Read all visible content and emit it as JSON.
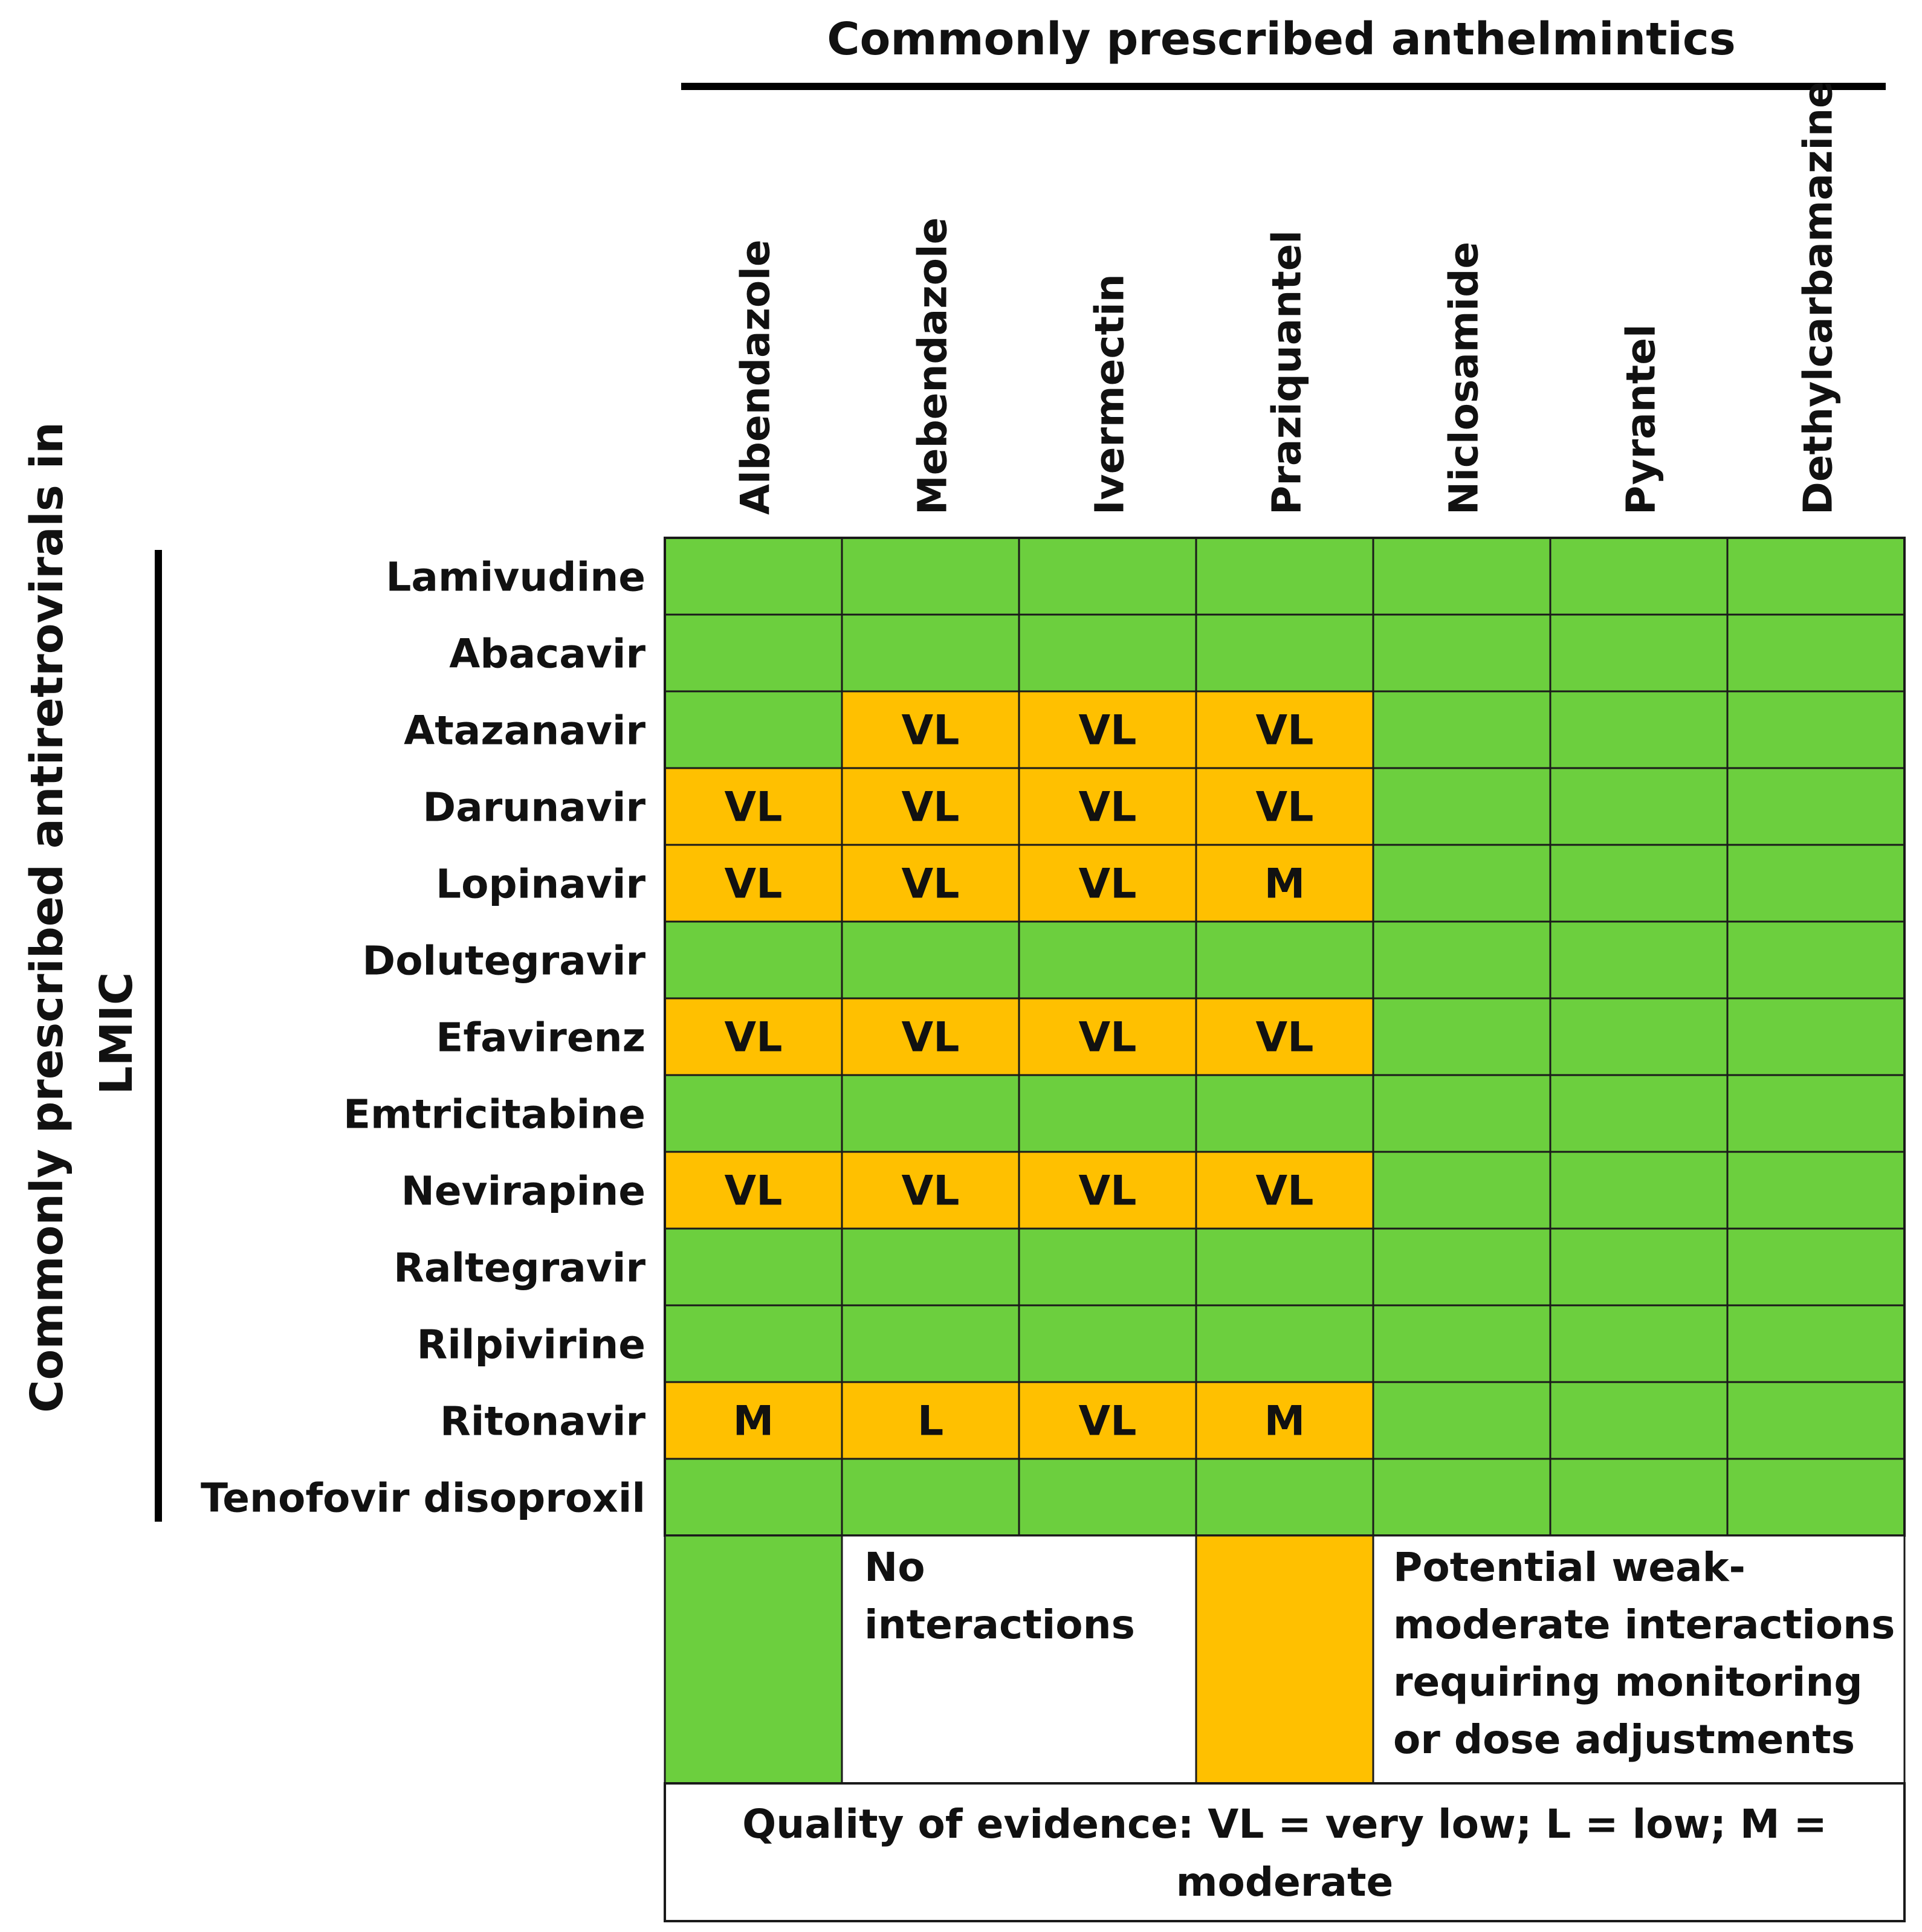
{
  "colors": {
    "green": "#6ccf3e",
    "orange": "#ffc000",
    "grid": "#1a1a1a",
    "text": "#111111"
  },
  "chart_data": {
    "type": "table",
    "title": "Commonly prescribed anthelmintics",
    "row_axis_label": [
      "Commonly prescribed antiretrovirals in",
      "LMIC"
    ],
    "columns": [
      "Albendazole",
      "Mebendazole",
      "Ivermectin",
      "Praziquantel",
      "Niclosamide",
      "Pyrantel",
      "Dethylcarbamazine"
    ],
    "rows": [
      {
        "name": "Lamivudine",
        "cells": [
          [
            "G",
            ""
          ],
          [
            "G",
            ""
          ],
          [
            "G",
            ""
          ],
          [
            "G",
            ""
          ],
          [
            "G",
            ""
          ],
          [
            "G",
            ""
          ],
          [
            "G",
            ""
          ]
        ]
      },
      {
        "name": "Abacavir",
        "cells": [
          [
            "G",
            ""
          ],
          [
            "G",
            ""
          ],
          [
            "G",
            ""
          ],
          [
            "G",
            ""
          ],
          [
            "G",
            ""
          ],
          [
            "G",
            ""
          ],
          [
            "G",
            ""
          ]
        ]
      },
      {
        "name": "Atazanavir",
        "cells": [
          [
            "G",
            ""
          ],
          [
            "O",
            "VL"
          ],
          [
            "O",
            "VL"
          ],
          [
            "O",
            "VL"
          ],
          [
            "G",
            ""
          ],
          [
            "G",
            ""
          ],
          [
            "G",
            ""
          ]
        ]
      },
      {
        "name": "Darunavir",
        "cells": [
          [
            "O",
            "VL"
          ],
          [
            "O",
            "VL"
          ],
          [
            "O",
            "VL"
          ],
          [
            "O",
            "VL"
          ],
          [
            "G",
            ""
          ],
          [
            "G",
            ""
          ],
          [
            "G",
            ""
          ]
        ]
      },
      {
        "name": "Lopinavir",
        "cells": [
          [
            "O",
            "VL"
          ],
          [
            "O",
            "VL"
          ],
          [
            "O",
            "VL"
          ],
          [
            "O",
            "M"
          ],
          [
            "G",
            ""
          ],
          [
            "G",
            ""
          ],
          [
            "G",
            ""
          ]
        ]
      },
      {
        "name": "Dolutegravir",
        "cells": [
          [
            "G",
            ""
          ],
          [
            "G",
            ""
          ],
          [
            "G",
            ""
          ],
          [
            "G",
            ""
          ],
          [
            "G",
            ""
          ],
          [
            "G",
            ""
          ],
          [
            "G",
            ""
          ]
        ]
      },
      {
        "name": "Efavirenz",
        "cells": [
          [
            "O",
            "VL"
          ],
          [
            "O",
            "VL"
          ],
          [
            "O",
            "VL"
          ],
          [
            "O",
            "VL"
          ],
          [
            "G",
            ""
          ],
          [
            "G",
            ""
          ],
          [
            "G",
            ""
          ]
        ]
      },
      {
        "name": "Emtricitabine",
        "cells": [
          [
            "G",
            ""
          ],
          [
            "G",
            ""
          ],
          [
            "G",
            ""
          ],
          [
            "G",
            ""
          ],
          [
            "G",
            ""
          ],
          [
            "G",
            ""
          ],
          [
            "G",
            ""
          ]
        ]
      },
      {
        "name": "Nevirapine",
        "cells": [
          [
            "O",
            "VL"
          ],
          [
            "O",
            "VL"
          ],
          [
            "O",
            "VL"
          ],
          [
            "O",
            "VL"
          ],
          [
            "G",
            ""
          ],
          [
            "G",
            ""
          ],
          [
            "G",
            ""
          ]
        ]
      },
      {
        "name": "Raltegravir",
        "cells": [
          [
            "G",
            ""
          ],
          [
            "G",
            ""
          ],
          [
            "G",
            ""
          ],
          [
            "G",
            ""
          ],
          [
            "G",
            ""
          ],
          [
            "G",
            ""
          ],
          [
            "G",
            ""
          ]
        ]
      },
      {
        "name": "Rilpivirine",
        "cells": [
          [
            "G",
            ""
          ],
          [
            "G",
            ""
          ],
          [
            "G",
            ""
          ],
          [
            "G",
            ""
          ],
          [
            "G",
            ""
          ],
          [
            "G",
            ""
          ],
          [
            "G",
            ""
          ]
        ]
      },
      {
        "name": "Ritonavir",
        "cells": [
          [
            "O",
            "M"
          ],
          [
            "O",
            "L"
          ],
          [
            "O",
            "VL"
          ],
          [
            "O",
            "M"
          ],
          [
            "G",
            ""
          ],
          [
            "G",
            ""
          ],
          [
            "G",
            ""
          ]
        ]
      },
      {
        "name": "Tenofovir disoproxil",
        "cells": [
          [
            "G",
            ""
          ],
          [
            "G",
            ""
          ],
          [
            "G",
            ""
          ],
          [
            "G",
            ""
          ],
          [
            "G",
            ""
          ],
          [
            "G",
            ""
          ],
          [
            "G",
            ""
          ]
        ]
      }
    ],
    "legend": {
      "green_label": [
        "No",
        "interactions"
      ],
      "orange_label": [
        "Potential weak-",
        "moderate interactions",
        "requiring monitoring",
        "or dose adjustments"
      ],
      "evidence_note": [
        "Quality of evidence: VL = very low; L = low; M =",
        "moderate"
      ]
    }
  }
}
